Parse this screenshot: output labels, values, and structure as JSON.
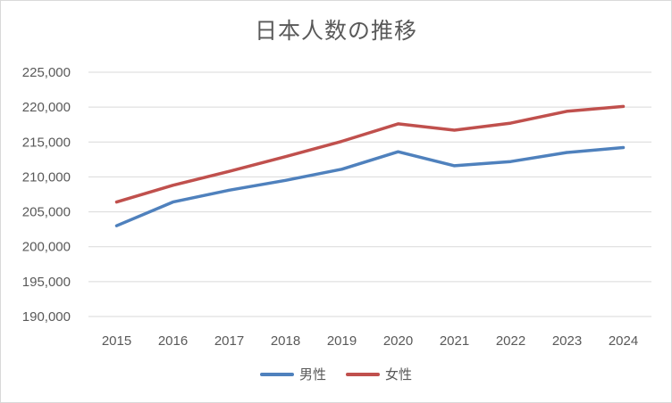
{
  "chart_data": {
    "type": "line",
    "title": "日本人数の推移",
    "xlabel": "",
    "ylabel": "",
    "categories": [
      "2015",
      "2016",
      "2017",
      "2018",
      "2019",
      "2020",
      "2021",
      "2022",
      "2023",
      "2024"
    ],
    "ylim": [
      190000,
      225000
    ],
    "yticks": [
      190000,
      195000,
      200000,
      205000,
      210000,
      215000,
      220000,
      225000
    ],
    "ytick_labels": [
      "190,000",
      "195,000",
      "200,000",
      "205,000",
      "210,000",
      "215,000",
      "220,000",
      "225,000"
    ],
    "grid": true,
    "legend_position": "bottom",
    "series": [
      {
        "name": "男性",
        "color": "#4f81bd",
        "values": [
          203000,
          206400,
          208100,
          209500,
          211100,
          213600,
          211600,
          212200,
          213500,
          214200
        ]
      },
      {
        "name": "女性",
        "color": "#c0504d",
        "values": [
          206400,
          208800,
          210800,
          212900,
          215100,
          217600,
          216700,
          217700,
          219400,
          220100
        ]
      }
    ]
  }
}
